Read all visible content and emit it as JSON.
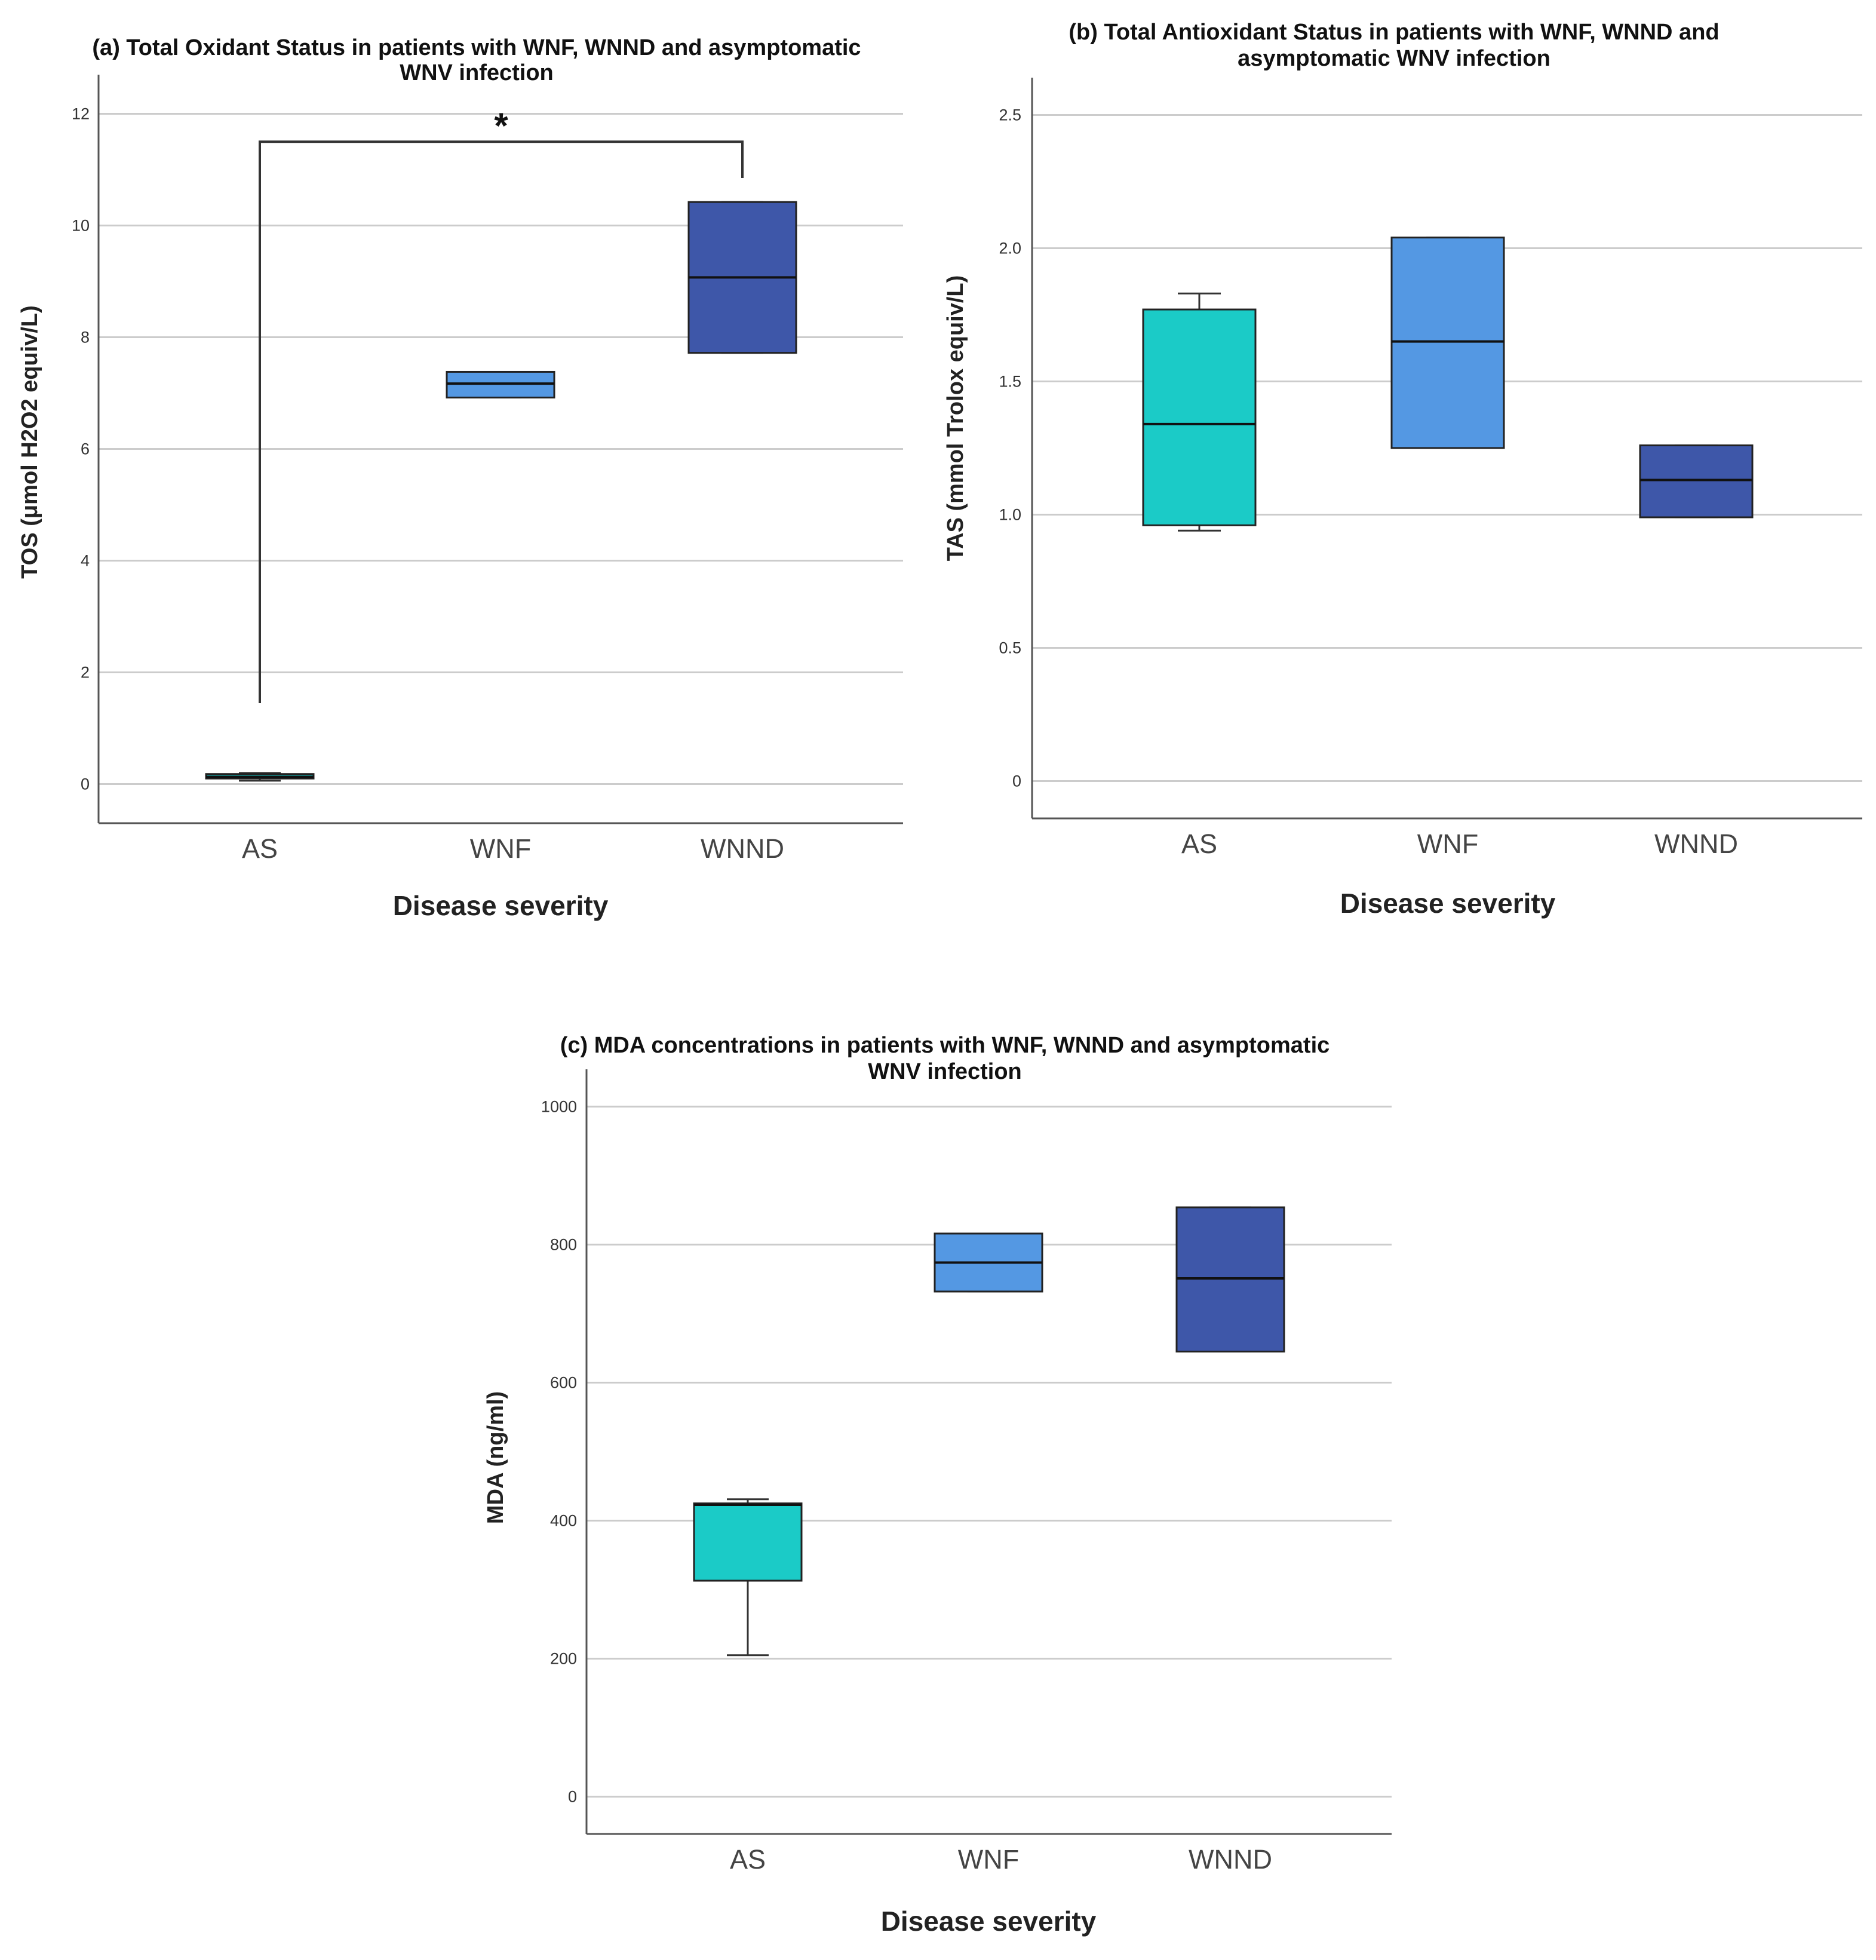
{
  "colors": {
    "AS": "#1bcbc7",
    "WNF": "#5498e3",
    "WNND": "#3e57a9",
    "grid": "#cccccc",
    "axis": "#555555"
  },
  "chart_data": [
    {
      "type": "box",
      "title_line1": "(a) Total Oxidant Status in patients with WNF, WNND and asymptomatic",
      "title_line2": "WNV infection",
      "xlabel": "Disease severity",
      "ylabel": "TOS (μmol H2O2 equiv/L)",
      "ylim": [
        -0.7,
        12.7
      ],
      "yticks": [
        0,
        2,
        4,
        6,
        8,
        10,
        12
      ],
      "ytick_labels": [
        "0",
        "2",
        "4",
        "6",
        "8",
        "10",
        "12"
      ],
      "grid": true,
      "categories": [
        "AS",
        "WNF",
        "WNND"
      ],
      "boxes": [
        {
          "category": "AS",
          "whisker_low": 0.06,
          "q1": 0.1,
          "median": 0.13,
          "q3": 0.18,
          "whisker_high": 0.2
        },
        {
          "category": "WNF",
          "whisker_low": 6.92,
          "q1": 6.92,
          "median": 7.17,
          "q3": 7.38,
          "whisker_high": 7.38
        },
        {
          "category": "WNND",
          "whisker_low": 7.72,
          "q1": 7.72,
          "median": 9.07,
          "q3": 10.42,
          "whisker_high": 10.42
        }
      ],
      "significance": {
        "from": "AS",
        "to": "WNND",
        "label": "*",
        "bar_y": 11.5,
        "left_drop_to": 1.45,
        "right_drop_to": 10.85
      }
    },
    {
      "type": "box",
      "title_line1": "(b) Total Antioxidant Status in patients with WNF, WNND and",
      "title_line2": "asymptomatic WNV infection",
      "xlabel": "Disease severity",
      "ylabel": "TAS (mmol Trolox equiv/L)",
      "ylim": [
        -0.14,
        2.64
      ],
      "yticks": [
        0,
        0.5,
        1.0,
        1.5,
        2.0,
        2.5
      ],
      "ytick_labels": [
        "0",
        "0.5",
        "1.0",
        "1.5",
        "2.0",
        "2.5"
      ],
      "grid": true,
      "categories": [
        "AS",
        "WNF",
        "WNND"
      ],
      "boxes": [
        {
          "category": "AS",
          "whisker_low": 0.94,
          "q1": 0.96,
          "median": 1.34,
          "q3": 1.77,
          "whisker_high": 1.83
        },
        {
          "category": "WNF",
          "whisker_low": 1.25,
          "q1": 1.25,
          "median": 1.65,
          "q3": 2.04,
          "whisker_high": 2.04
        },
        {
          "category": "WNND",
          "whisker_low": 0.99,
          "q1": 0.99,
          "median": 1.13,
          "q3": 1.26,
          "whisker_high": 1.26
        }
      ]
    },
    {
      "type": "box",
      "title_line1": "(c) MDA concentrations in patients with WNF, WNND and asymptomatic",
      "title_line2": "WNV infection",
      "xlabel": "Disease severity",
      "ylabel": "MDA (ng/ml)",
      "ylim": [
        -54,
        1054
      ],
      "yticks": [
        0,
        200,
        400,
        600,
        800,
        1000
      ],
      "ytick_labels": [
        "0",
        "200",
        "400",
        "600",
        "800",
        "1000"
      ],
      "grid": true,
      "categories": [
        "AS",
        "WNF",
        "WNND"
      ],
      "boxes": [
        {
          "category": "AS",
          "whisker_low": 205,
          "q1": 313,
          "median": 423,
          "q3": 425,
          "whisker_high": 431
        },
        {
          "category": "WNF",
          "whisker_low": 732,
          "q1": 732,
          "median": 774,
          "q3": 816,
          "whisker_high": 816
        },
        {
          "category": "WNND",
          "whisker_low": 645,
          "q1": 645,
          "median": 751,
          "q3": 854,
          "whisker_high": 854
        }
      ]
    }
  ]
}
